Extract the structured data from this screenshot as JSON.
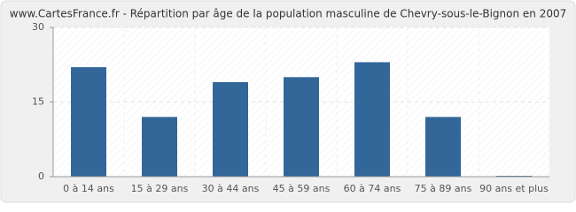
{
  "chart_data": {
    "type": "bar",
    "title": "www.CartesFrance.fr - Répartition par âge de la population masculine de Chevry-sous-le-Bignon en 2007",
    "categories": [
      "0 à 14 ans",
      "15 à 29 ans",
      "30 à 44 ans",
      "45 à 59 ans",
      "60 à 74 ans",
      "75 à 89 ans",
      "90 ans et plus"
    ],
    "values": [
      22,
      12,
      19,
      20,
      23,
      12,
      0
    ],
    "color": "#336699",
    "ylim": [
      0,
      30
    ],
    "yticks": [
      0,
      15,
      30
    ],
    "grid": true
  }
}
